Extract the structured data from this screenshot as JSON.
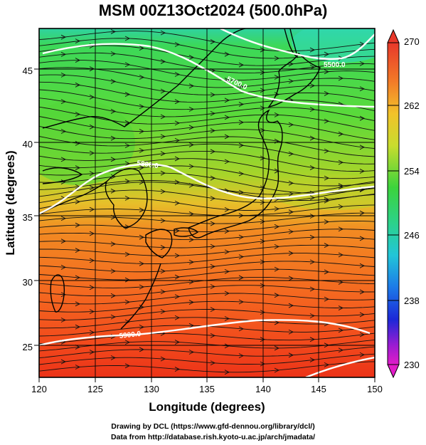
{
  "title": "MSM 00Z13Oct2024 (500.0hPa)",
  "xlabel": "Longitude (degrees)",
  "ylabel": "Latitude  (degrees)",
  "x_ticks": [
    "120",
    "125",
    "130",
    "135",
    "140",
    "145",
    "150"
  ],
  "y_ticks": [
    "25",
    "30",
    "35",
    "40",
    "45"
  ],
  "colorbar_ticks": [
    "270",
    "262",
    "254",
    "246",
    "238",
    "230"
  ],
  "contour_labels": [
    "5500.0",
    "5700.0",
    "5800.0",
    "5900.0"
  ],
  "credits": {
    "line1": "Drawing by DCL (https://www.gfd-dennou.org/library/dcl/)",
    "line2": "Data from http://database.rish.kyoto-u.ac.jp/arch/jmadata/"
  },
  "chart_data": {
    "type": "heatmap",
    "variable": "temperature (K) with wind streamlines and geopotential height contours",
    "xlim": [
      120,
      150
    ],
    "ylim": [
      22.5,
      48
    ],
    "colorbar_range": [
      230,
      270
    ],
    "contours": [
      {
        "label": "5500.0",
        "lon": 140,
        "lat": 47
      },
      {
        "label": "5700.0",
        "lon": 137,
        "lat": 43.5
      },
      {
        "label": "5800.0",
        "lon": 130,
        "lat": 38.5
      },
      {
        "label": "5900.0",
        "lon": 130,
        "lat": 24.7
      }
    ]
  }
}
